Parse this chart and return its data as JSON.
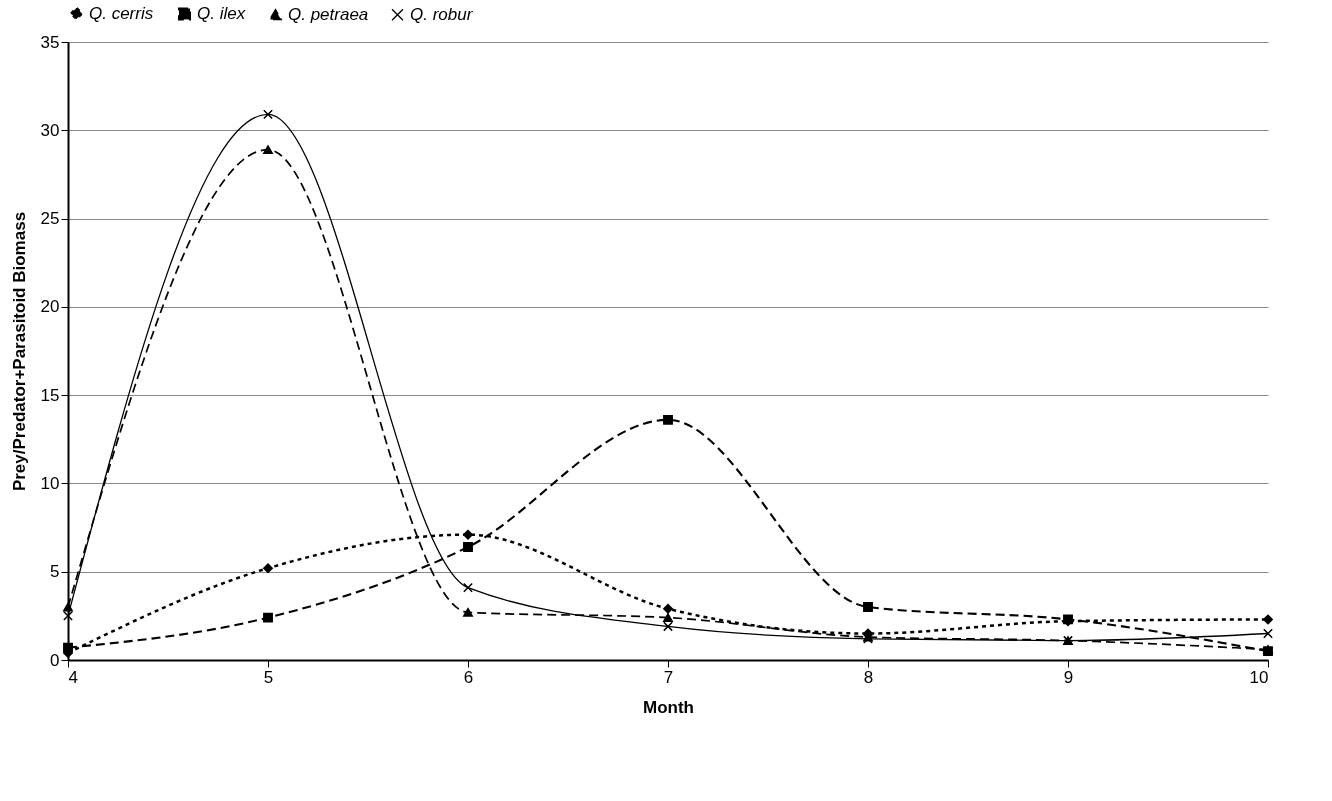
{
  "chart_data": {
    "type": "line",
    "xlabel": "Month",
    "ylabel": "Prey/Predator+Parasitoid Biomass",
    "x": [
      4,
      5,
      6,
      7,
      8,
      9,
      10
    ],
    "series": [
      {
        "name": "Q. cerris",
        "color": "#000000",
        "marker": "diamond",
        "line_style": "dotted",
        "values": [
          0.4,
          5.2,
          7.1,
          2.9,
          1.5,
          2.2,
          2.3
        ]
      },
      {
        "name": "Q. ilex",
        "color": "#000000",
        "marker": "square",
        "line_style": "dashed",
        "values": [
          0.7,
          2.4,
          6.4,
          13.6,
          3.0,
          2.3,
          0.5
        ]
      },
      {
        "name": "Q. petraea",
        "color": "#000000",
        "marker": "triangle",
        "line_style": "dashed",
        "values": [
          3.0,
          28.9,
          2.7,
          2.4,
          1.3,
          1.1,
          0.6
        ]
      },
      {
        "name": "Q. robur",
        "color": "#000000",
        "marker": "cross",
        "line_style": "solid",
        "values": [
          2.5,
          30.9,
          4.1,
          1.9,
          1.2,
          1.1,
          1.5
        ]
      }
    ],
    "xlim": [
      4,
      10
    ],
    "xticks": [
      4,
      5,
      6,
      7,
      8,
      9,
      10
    ],
    "ylim": [
      0,
      35
    ],
    "yticks": [
      0,
      5,
      10,
      15,
      20,
      25,
      30,
      35
    ],
    "grid": "y",
    "legend": "top"
  }
}
